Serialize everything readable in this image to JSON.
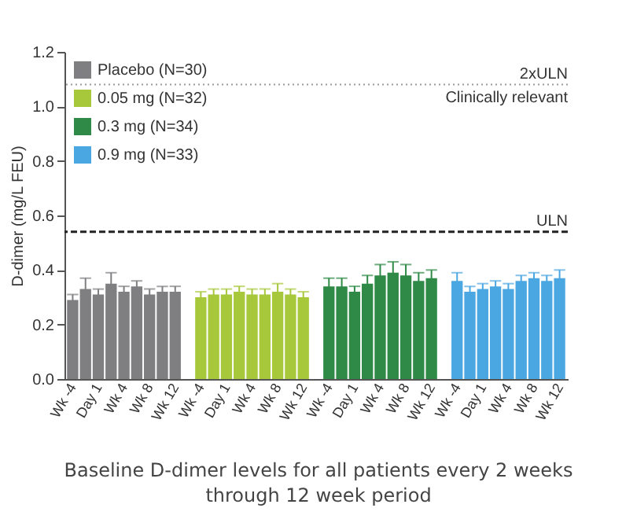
{
  "chart_data": {
    "type": "bar",
    "categories": [
      "Wk -4",
      null,
      "Day 1",
      null,
      "Wk 4",
      null,
      "Wk 8",
      null,
      "Wk 12",
      null,
      "Wk -4",
      null,
      "Day 1",
      null,
      "Wk 4",
      null,
      "Wk 8",
      null,
      "Wk 12",
      null,
      "Wk -4",
      null,
      "Day 1",
      null,
      "Wk 4",
      null,
      "Wk 8",
      null,
      "Wk 12",
      null,
      "Wk -4",
      null,
      "Day 1",
      null,
      "Wk 4",
      null,
      "Wk 8",
      null,
      "Wk 12"
    ],
    "series": [
      {
        "name": "Placebo (N=30)",
        "color": "#7f7f82",
        "values": [
          0.29,
          0.33,
          0.31,
          0.35,
          0.32,
          0.34,
          0.31,
          0.32,
          0.32,
          null,
          null,
          null,
          null,
          null,
          null,
          null,
          null,
          null,
          null,
          null,
          null,
          null,
          null,
          null,
          null,
          null,
          null,
          null,
          null,
          null,
          null,
          null,
          null,
          null,
          null,
          null,
          null,
          null,
          null
        ],
        "errors": [
          0.02,
          0.04,
          0.02,
          0.04,
          0.02,
          0.02,
          0.02,
          0.02,
          0.02,
          null,
          null,
          null,
          null,
          null,
          null,
          null,
          null,
          null,
          null,
          null,
          null,
          null,
          null,
          null,
          null,
          null,
          null,
          null,
          null,
          null,
          null,
          null,
          null,
          null,
          null,
          null,
          null,
          null,
          null
        ]
      },
      {
        "name": "0.05 mg (N=32)",
        "color": "#a6c83a",
        "values": [
          null,
          null,
          null,
          null,
          null,
          null,
          null,
          null,
          null,
          null,
          0.3,
          0.31,
          0.31,
          0.32,
          0.31,
          0.31,
          0.32,
          0.31,
          0.3,
          null,
          null,
          null,
          null,
          null,
          null,
          null,
          null,
          null,
          null,
          null,
          null,
          null,
          null,
          null,
          null,
          null,
          null,
          null,
          null
        ],
        "errors": [
          null,
          null,
          null,
          null,
          null,
          null,
          null,
          null,
          null,
          null,
          0.02,
          0.02,
          0.02,
          0.02,
          0.02,
          0.02,
          0.03,
          0.02,
          0.02,
          null,
          null,
          null,
          null,
          null,
          null,
          null,
          null,
          null,
          null,
          null,
          null,
          null,
          null,
          null,
          null,
          null,
          null,
          null,
          null
        ]
      },
      {
        "name": "0.3 mg (N=34)",
        "color": "#2f8a47",
        "values": [
          null,
          null,
          null,
          null,
          null,
          null,
          null,
          null,
          null,
          null,
          null,
          null,
          null,
          null,
          null,
          null,
          null,
          null,
          null,
          null,
          0.34,
          0.34,
          0.32,
          0.35,
          0.38,
          0.39,
          0.38,
          0.36,
          0.37,
          null,
          null,
          null,
          null,
          null,
          null,
          null,
          null,
          null,
          null
        ],
        "errors": [
          null,
          null,
          null,
          null,
          null,
          null,
          null,
          null,
          null,
          null,
          null,
          null,
          null,
          null,
          null,
          null,
          null,
          null,
          null,
          null,
          0.03,
          0.03,
          0.02,
          0.03,
          0.04,
          0.04,
          0.04,
          0.03,
          0.03,
          null,
          null,
          null,
          null,
          null,
          null,
          null,
          null,
          null,
          null
        ]
      },
      {
        "name": "0.9 mg (N=33)",
        "color": "#4ba7e1",
        "values": [
          null,
          null,
          null,
          null,
          null,
          null,
          null,
          null,
          null,
          null,
          null,
          null,
          null,
          null,
          null,
          null,
          null,
          null,
          null,
          null,
          null,
          null,
          null,
          null,
          null,
          null,
          null,
          null,
          null,
          null,
          0.36,
          0.32,
          0.33,
          0.34,
          0.33,
          0.36,
          0.37,
          0.36,
          0.37
        ],
        "errors": [
          null,
          null,
          null,
          null,
          null,
          null,
          null,
          null,
          null,
          null,
          null,
          null,
          null,
          null,
          null,
          null,
          null,
          null,
          null,
          null,
          null,
          null,
          null,
          null,
          null,
          null,
          null,
          null,
          null,
          null,
          0.03,
          0.02,
          0.02,
          0.02,
          0.02,
          0.02,
          0.02,
          0.02,
          0.03
        ]
      }
    ],
    "ylabel": "D-dimer (mg/L FEU)",
    "ylim": [
      0,
      1.2
    ],
    "yticks": [
      {
        "value": 0,
        "label": "0.0"
      },
      0.2,
      0.4,
      0.6,
      0.8,
      {
        "value": 1,
        "label": "1.0"
      },
      1.2
    ],
    "ref_lines": [
      {
        "axis": "y",
        "value": 1.08,
        "label": "2xULN",
        "line_style": "dotted",
        "color": "#9a9a9a"
      },
      {
        "axis": "y",
        "value": 0.54,
        "label": "ULN",
        "line_style": "dashed",
        "color": "#222222"
      }
    ],
    "annotations": [
      {
        "text": "Clinically relevant",
        "y": 1.08
      },
      "Baseline D-dimer levels for all patients every 2 weeks through 12 week period"
    ],
    "legend": "top left",
    "grid": false
  }
}
